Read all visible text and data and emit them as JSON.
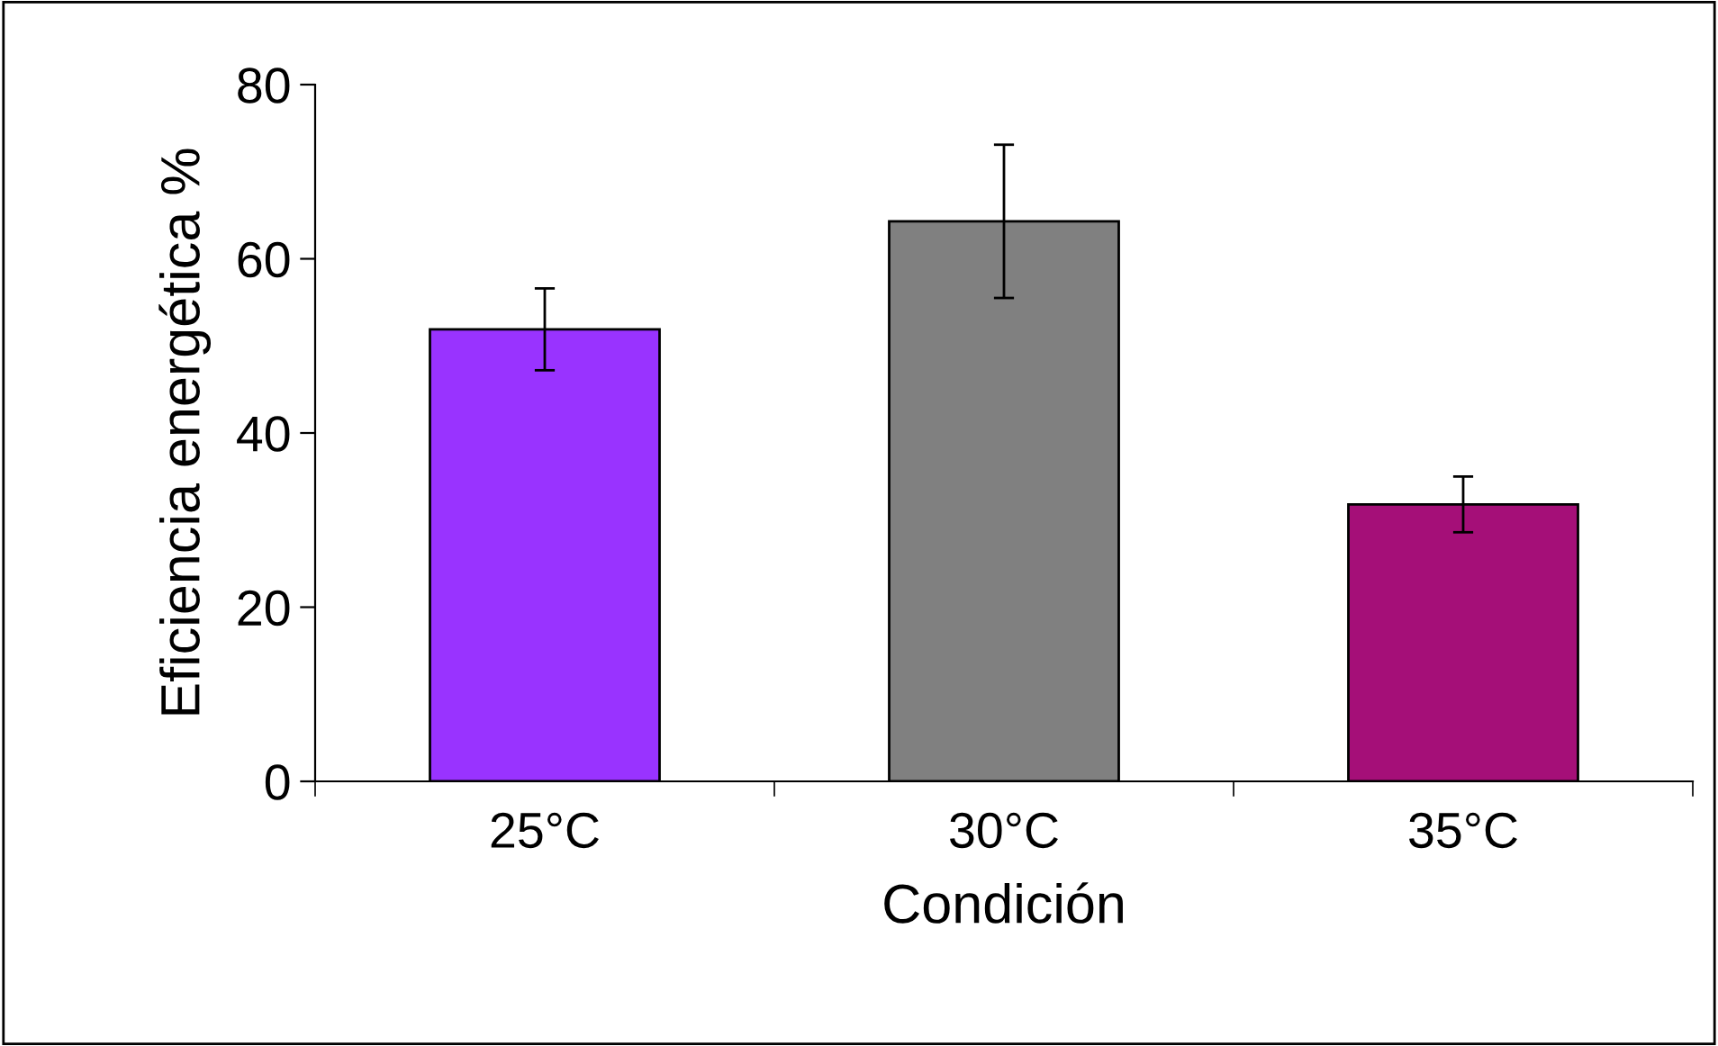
{
  "chart_data": {
    "type": "bar",
    "xlabel": "Condición",
    "ylabel": "Eficiencia energética %",
    "categories": [
      "25°C",
      "30°C",
      "35°C"
    ],
    "values": [
      51.9,
      64.3,
      31.8
    ],
    "errors": [
      4.7,
      8.8,
      3.2
    ],
    "colors": [
      "#9933ff",
      "#808080",
      "#a50f78"
    ],
    "ylim": [
      0,
      80
    ],
    "yticks": [
      0,
      20,
      40,
      60,
      80
    ],
    "grid": false,
    "legend": false
  }
}
